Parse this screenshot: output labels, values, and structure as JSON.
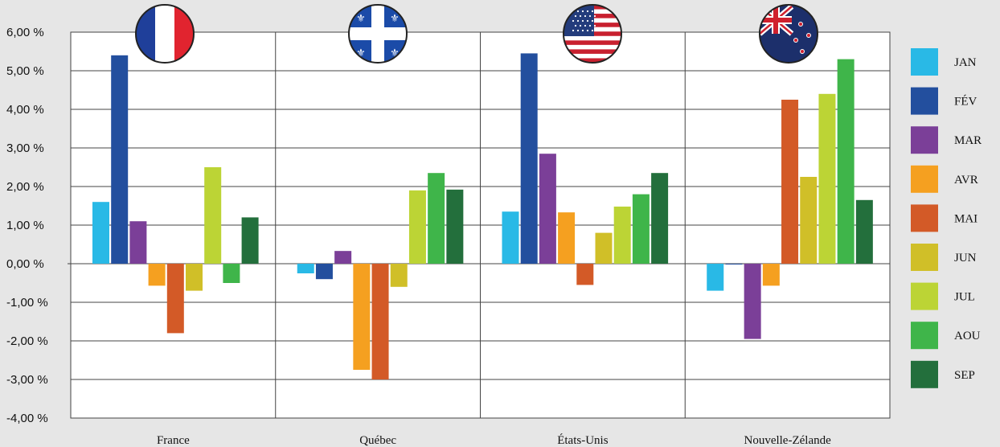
{
  "chart_data": {
    "type": "bar",
    "categories": [
      "France",
      "Québec",
      "États-Unis",
      "Nouvelle-Zélande"
    ],
    "series": [
      {
        "name": "JAN",
        "color": "#29b9e6",
        "values": [
          1.6,
          -0.25,
          1.35,
          -0.7
        ]
      },
      {
        "name": "FÉV",
        "color": "#234f9e",
        "values": [
          5.4,
          -0.4,
          5.45,
          0.0
        ]
      },
      {
        "name": "MAR",
        "color": "#7b3f98",
        "values": [
          1.1,
          0.33,
          2.85,
          -1.95
        ]
      },
      {
        "name": "AVR",
        "color": "#f5a020",
        "values": [
          -0.57,
          -2.75,
          1.33,
          -0.57
        ]
      },
      {
        "name": "MAI",
        "color": "#d35a27",
        "values": [
          -1.8,
          -3.0,
          -0.55,
          4.25
        ]
      },
      {
        "name": "JUN",
        "color": "#d0bf28",
        "values": [
          -0.7,
          -0.6,
          0.8,
          2.25
        ]
      },
      {
        "name": "JUL",
        "color": "#bcd435",
        "values": [
          2.5,
          1.9,
          1.48,
          4.4
        ]
      },
      {
        "name": "AOU",
        "color": "#3fb54a",
        "values": [
          -0.5,
          2.35,
          1.8,
          5.3
        ]
      },
      {
        "name": "SEP",
        "color": "#236f3c",
        "values": [
          1.2,
          1.92,
          2.35,
          1.65
        ]
      }
    ],
    "y_ticks": [
      "6,00 %",
      "5,00 %",
      "4,00 %",
      "3,00 %",
      "2,00 %",
      "1,00 %",
      "0,00 %",
      "-1,00 %",
      "-2,00 %",
      "-3,00 %",
      "-4,00 %"
    ],
    "ylim": [
      -4,
      6
    ],
    "grid": true,
    "legend_position": "right",
    "category_icons": [
      "france-flag-icon",
      "quebec-flag-icon",
      "usa-flag-icon",
      "new-zealand-flag-icon"
    ]
  }
}
